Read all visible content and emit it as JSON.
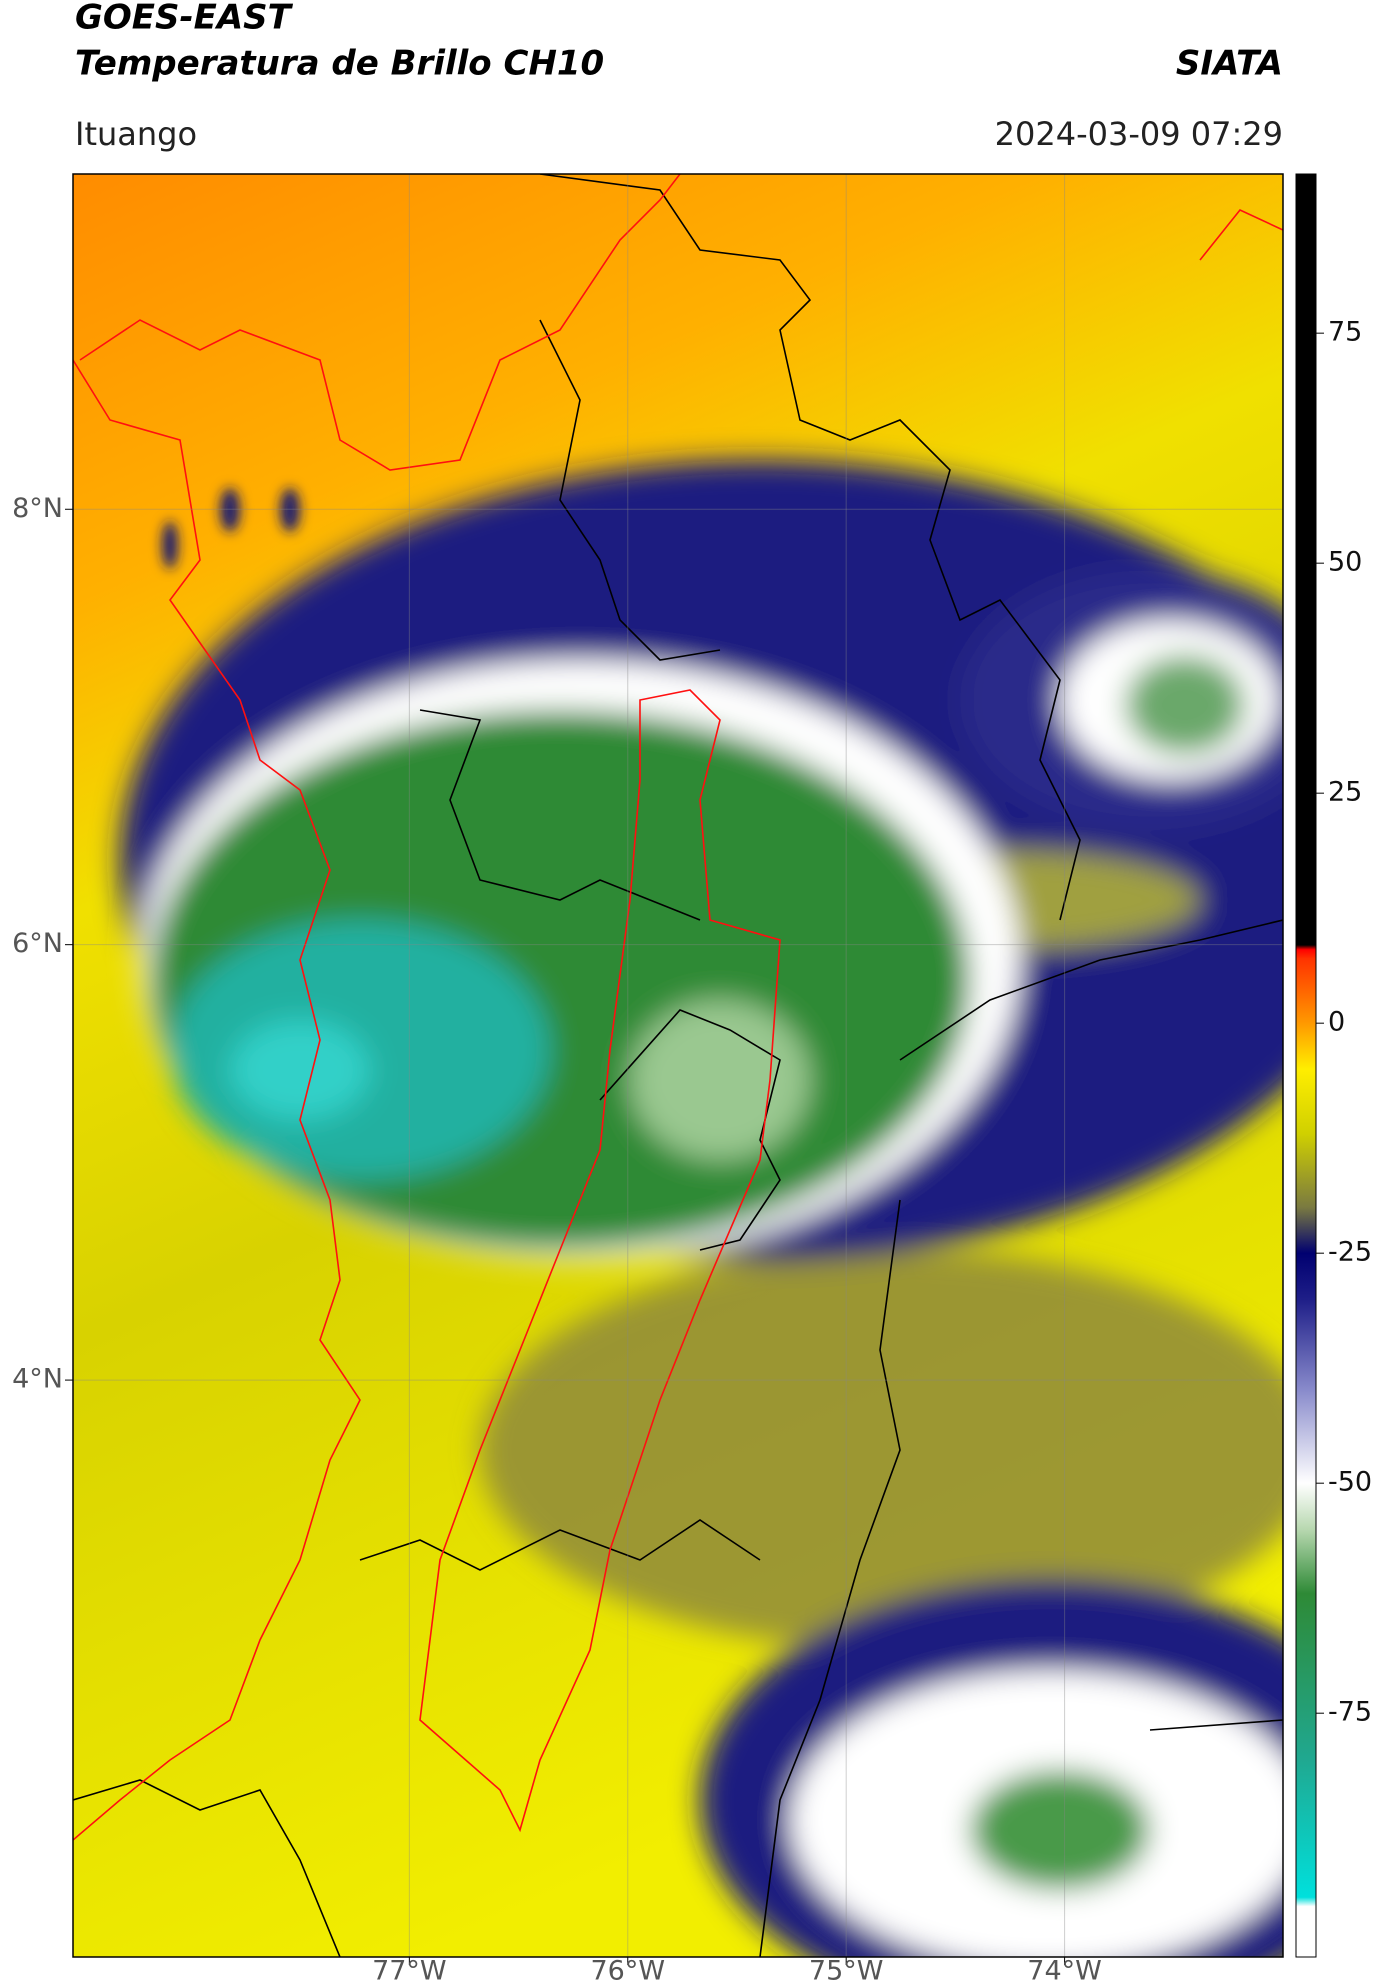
{
  "header": {
    "title": "GOES-EAST",
    "subtitle": "Temperatura de Brillo CH10",
    "source": "SIATA",
    "location": "Ituango",
    "datetime": "2024-03-09 07:29"
  },
  "map": {
    "lonlim": [
      -78.54,
      -73.0
    ],
    "latlim": [
      1.35,
      9.54
    ],
    "lonticks": [
      {
        "value": -77,
        "label": "77°W"
      },
      {
        "value": -76,
        "label": "76°W"
      },
      {
        "value": -75,
        "label": "75°W"
      },
      {
        "value": -74,
        "label": "74°W"
      }
    ],
    "latticks": [
      {
        "value": 8,
        "label": "8°N"
      },
      {
        "value": 6,
        "label": "6°N"
      },
      {
        "value": 4,
        "label": "4°N"
      }
    ]
  },
  "colorbar": {
    "lim": [
      -101.5,
      92.3
    ],
    "ticks": [
      -75,
      -50,
      -25,
      0,
      25,
      50,
      75
    ],
    "stops": [
      {
        "value": -96,
        "color": "#ffffff"
      },
      {
        "value": -95,
        "color": "#00e0dc"
      },
      {
        "value": -80,
        "color": "#20a890"
      },
      {
        "value": -62,
        "color": "#2e8a36"
      },
      {
        "value": -55,
        "color": "#b8d8b0"
      },
      {
        "value": -50,
        "color": "#ffffff"
      },
      {
        "value": -40,
        "color": "#8a8ccc"
      },
      {
        "value": -30,
        "color": "#1e1e88"
      },
      {
        "value": -25,
        "color": "#000070"
      },
      {
        "value": -20,
        "color": "#7a7a40"
      },
      {
        "value": -12,
        "color": "#d0d000"
      },
      {
        "value": -5,
        "color": "#ffee00"
      },
      {
        "value": 0,
        "color": "#ff9900"
      },
      {
        "value": 7,
        "color": "#ff3300"
      },
      {
        "value": 8,
        "color": "#ff0000"
      },
      {
        "value": 8.5,
        "color": "#000000"
      }
    ]
  }
}
